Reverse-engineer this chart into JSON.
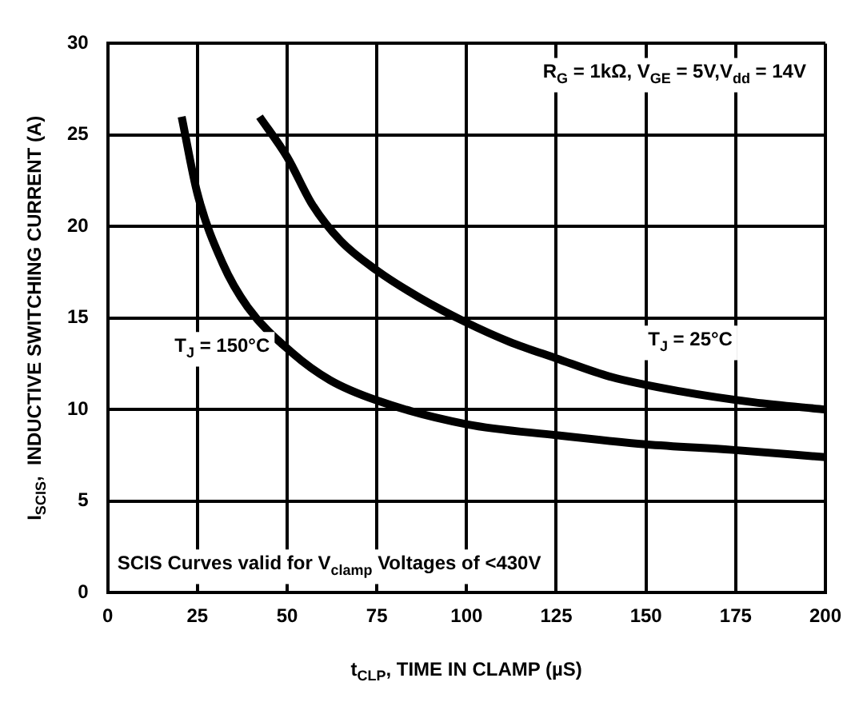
{
  "chart_data": {
    "type": "line",
    "xlabel": "t$_{CLP}$, TIME IN CLAMP (µS)",
    "ylabel": "I$_{SCIS}$,  INDUCTIVE SWITCHING CURRENT (A)",
    "annotations": [
      "R$_{G}$ = 1kΩ, V$_{GE}$ = 5V,V$_{dd}$ = 14V",
      "SCIS Curves valid for V$_{clamp}$ Voltages of <430V"
    ],
    "xlim": [
      0,
      200
    ],
    "xticks": [
      0,
      25,
      50,
      75,
      100,
      125,
      150,
      175,
      200
    ],
    "ylim": [
      0,
      30
    ],
    "yticks": [
      0,
      5,
      10,
      15,
      20,
      25,
      30
    ],
    "grid": true,
    "marker": "none",
    "line_style": "solid",
    "legend": false,
    "series": [
      {
        "name": "T$_{J}$ = 150°C",
        "color": "#000000",
        "x": [
          20.6,
          25,
          32,
          39,
          51.4,
          62,
          75,
          100,
          125,
          150,
          174,
          200
        ],
        "values": [
          26,
          21.8,
          18,
          15.6,
          13.1,
          11.6,
          10.5,
          9.2,
          8.6,
          8.1,
          7.8,
          7.4
        ]
      },
      {
        "name": "T$_{J}$ = 25°C",
        "color": "#000000",
        "x": [
          42.3,
          50,
          57,
          65,
          75,
          87,
          99.5,
          112,
          125,
          140,
          159.5,
          180,
          200
        ],
        "values": [
          26,
          23.8,
          21.2,
          19.2,
          17.6,
          16.1,
          14.8,
          13.7,
          12.8,
          11.8,
          11,
          10.4,
          10
        ]
      }
    ]
  }
}
